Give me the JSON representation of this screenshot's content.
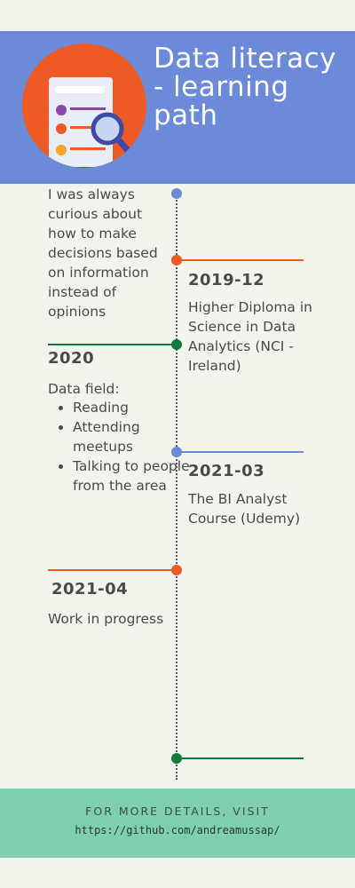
{
  "header": {
    "title": "Data literacy - learning path"
  },
  "intro": {
    "text": "I was always curious about how to make decisions based on information instead of opinions"
  },
  "events": [
    {
      "date": "2019-12",
      "description": "Higher Diploma in Science in Data Analytics (NCI - Ireland)"
    },
    {
      "date": "2020",
      "description": "Data field:",
      "items": [
        "Reading",
        "Attending meetups",
        "Talking to people from the area"
      ]
    },
    {
      "date": "2021-03",
      "description": "The BI Analyst Course (Udemy)"
    },
    {
      "date": "2021-04",
      "description": "Work in progress"
    }
  ],
  "footer": {
    "cta": "FOR MORE DETAILS, VISIT",
    "url": "https://github.com/andreamussap/"
  },
  "colors": {
    "header": "#6b8bd9",
    "orange": "#ee5a24",
    "blue": "#6b8bd9",
    "green": "#127a3b",
    "footer": "#7dcfaf"
  }
}
